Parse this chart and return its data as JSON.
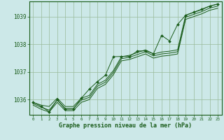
{
  "hours": [
    0,
    1,
    2,
    3,
    4,
    5,
    6,
    7,
    8,
    9,
    10,
    11,
    12,
    13,
    14,
    15,
    16,
    17,
    18,
    19,
    20,
    21,
    22,
    23
  ],
  "smooth_line1": [
    1035.9,
    1035.8,
    1035.75,
    1036.05,
    1035.75,
    1035.75,
    1036.05,
    1036.15,
    1036.55,
    1036.7,
    1037.05,
    1037.55,
    1037.6,
    1037.7,
    1037.8,
    1037.65,
    1037.72,
    1037.75,
    1037.8,
    1039.05,
    1039.15,
    1039.25,
    1039.38,
    1039.45
  ],
  "smooth_line2": [
    1035.85,
    1035.72,
    1035.62,
    1035.98,
    1035.68,
    1035.68,
    1035.98,
    1036.08,
    1036.48,
    1036.63,
    1036.98,
    1037.48,
    1037.53,
    1037.63,
    1037.73,
    1037.58,
    1037.65,
    1037.68,
    1037.73,
    1038.98,
    1039.08,
    1039.18,
    1039.31,
    1039.38
  ],
  "smooth_line3": [
    1035.8,
    1035.65,
    1035.55,
    1035.9,
    1035.6,
    1035.6,
    1035.9,
    1036.0,
    1036.4,
    1036.55,
    1036.9,
    1037.4,
    1037.45,
    1037.55,
    1037.65,
    1037.5,
    1037.57,
    1037.6,
    1037.65,
    1038.9,
    1039.0,
    1039.1,
    1039.23,
    1039.3
  ],
  "dot_line": [
    1035.9,
    1035.76,
    1035.56,
    1036.0,
    1035.65,
    1035.65,
    1036.05,
    1036.38,
    1036.65,
    1036.88,
    1037.55,
    1037.56,
    1037.56,
    1037.76,
    1037.76,
    1037.66,
    1038.32,
    1038.12,
    1038.72,
    1039.05,
    1039.16,
    1039.27,
    1039.38,
    1039.46
  ],
  "ylim": [
    1035.45,
    1039.55
  ],
  "yticks": [
    1036,
    1037,
    1038,
    1039
  ],
  "xlim": [
    -0.5,
    23.5
  ],
  "bg_color": "#cce8e8",
  "line_color": "#1a5c1a",
  "grid_color": "#99bb99",
  "xlabel": "Graphe pression niveau de la mer (hPa)",
  "xlabel_color": "#1a5c1a",
  "tick_color": "#1a5c1a",
  "spine_color": "#1a5c1a"
}
